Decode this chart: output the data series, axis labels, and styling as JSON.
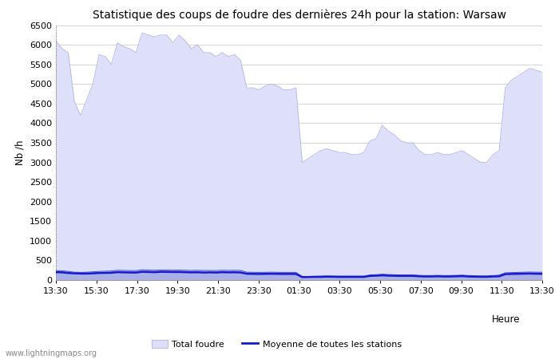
{
  "title": "Statistique des coups de foudre des dernières 24h pour la station: Warsaw",
  "xlabel": "Heure",
  "ylabel": "Nb /h",
  "watermark": "www.lightningmaps.org",
  "ylim": [
    0,
    6500
  ],
  "yticks": [
    0,
    500,
    1000,
    1500,
    2000,
    2500,
    3000,
    3500,
    4000,
    4500,
    5000,
    5500,
    6000,
    6500
  ],
  "xtick_labels": [
    "13:30",
    "15:30",
    "17:30",
    "19:30",
    "21:30",
    "23:30",
    "01:30",
    "03:30",
    "05:30",
    "07:30",
    "09:30",
    "11:30",
    "13:30"
  ],
  "background_color": "#ffffff",
  "plot_bg_color": "#ffffff",
  "grid_color": "#cccccc",
  "total_color": "#dde0f8",
  "total_edge_color": "#b8bce8",
  "warsaw_color": "#aab0e8",
  "warsaw_edge_color": "#4455cc",
  "mean_line_color": "#1a1acc",
  "total_foudre": [
    6100,
    5900,
    5800,
    4550,
    4200,
    4600,
    5000,
    5750,
    5700,
    5500,
    6050,
    5950,
    5900,
    5800,
    6300,
    6250,
    6200,
    6250,
    6250,
    6050,
    6250,
    6100,
    5900,
    6000,
    5800,
    5800,
    5700,
    5800,
    5700,
    5750,
    5600,
    4900,
    4900,
    4850,
    4950,
    5000,
    4950,
    4850,
    4850,
    4900,
    3000,
    3100,
    3200,
    3300,
    3350,
    3300,
    3250,
    3250,
    3200,
    3200,
    3250,
    3550,
    3600,
    3950,
    3800,
    3700,
    3550,
    3500,
    3500,
    3300,
    3200,
    3200,
    3250,
    3200,
    3200,
    3250,
    3300,
    3200,
    3100,
    3000,
    3000,
    3200,
    3300,
    4900,
    5100,
    5200,
    5300,
    5400,
    5350,
    5300
  ],
  "foudre_warsaw": [
    240,
    235,
    220,
    200,
    195,
    200,
    210,
    220,
    225,
    230,
    250,
    245,
    240,
    240,
    260,
    255,
    250,
    255,
    255,
    250,
    255,
    250,
    245,
    248,
    245,
    245,
    240,
    250,
    245,
    248,
    245,
    200,
    198,
    195,
    198,
    200,
    198,
    195,
    195,
    195,
    90,
    92,
    95,
    100,
    105,
    102,
    100,
    100,
    100,
    100,
    100,
    130,
    135,
    150,
    140,
    135,
    130,
    130,
    130,
    120,
    115,
    115,
    120,
    115,
    115,
    120,
    125,
    115,
    110,
    105,
    105,
    115,
    125,
    185,
    190,
    195,
    200,
    205,
    200,
    200
  ],
  "mean_line": [
    200,
    195,
    180,
    170,
    165,
    165,
    170,
    180,
    182,
    185,
    200,
    195,
    192,
    190,
    210,
    205,
    200,
    210,
    208,
    205,
    205,
    200,
    195,
    198,
    190,
    195,
    190,
    200,
    195,
    198,
    192,
    160,
    158,
    155,
    158,
    160,
    158,
    155,
    155,
    155,
    75,
    77,
    80,
    80,
    85,
    83,
    80,
    80,
    80,
    80,
    80,
    105,
    110,
    120,
    112,
    108,
    105,
    105,
    105,
    95,
    90,
    90,
    95,
    90,
    90,
    95,
    100,
    90,
    85,
    82,
    82,
    90,
    95,
    150,
    155,
    158,
    162,
    165,
    160,
    158
  ],
  "legend_total_label": "Total foudre",
  "legend_mean_label": "Moyenne de toutes les stations",
  "title_fontsize": 10,
  "tick_fontsize": 8,
  "label_fontsize": 8.5,
  "legend_fontsize": 8
}
